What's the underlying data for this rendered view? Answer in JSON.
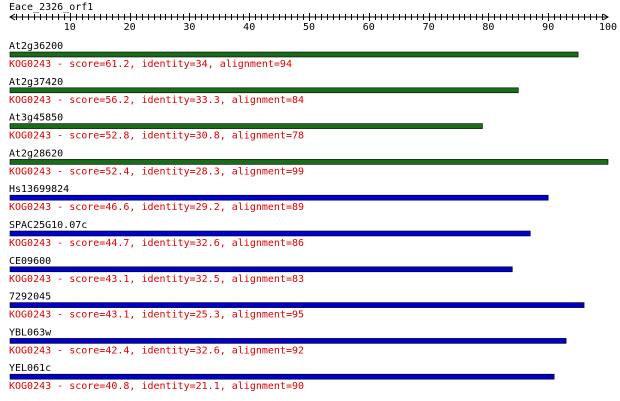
{
  "query": {
    "name": "Eace_2326_orf1",
    "length": 100
  },
  "ruler": {
    "min": 0,
    "max": 100,
    "major_step": 10,
    "minor_step": 1,
    "labels": [
      "10",
      "20",
      "30",
      "40",
      "50",
      "60",
      "70",
      "80",
      "90",
      "100"
    ]
  },
  "colors": {
    "group_green": "#1a6b1a",
    "group_blue": "#0000cc",
    "detail_text": "#e00000"
  },
  "hits": [
    {
      "name": "At2g36200",
      "color": "green",
      "end": 95,
      "detail": "KOG0243 - score=61.2, identity=34, alignment=94"
    },
    {
      "name": "At2g37420",
      "color": "green",
      "end": 85,
      "detail": "KOG0243 - score=56.2, identity=33.3, alignment=84"
    },
    {
      "name": "At3g45850",
      "color": "green",
      "end": 79,
      "detail": "KOG0243 - score=52.8, identity=30.8, alignment=78"
    },
    {
      "name": "At2g28620",
      "color": "green",
      "end": 100,
      "detail": "KOG0243 - score=52.4, identity=28.3, alignment=99"
    },
    {
      "name": "Hs13699824",
      "color": "blue",
      "end": 90,
      "detail": "KOG0243 - score=46.6, identity=29.2, alignment=89"
    },
    {
      "name": "SPAC25G10.07c",
      "color": "blue",
      "end": 87,
      "detail": "KOG0243 - score=44.7, identity=32.6, alignment=86"
    },
    {
      "name": "CE09600",
      "color": "blue",
      "end": 84,
      "detail": "KOG0243 - score=43.1, identity=32.5, alignment=83"
    },
    {
      "name": "7292045",
      "color": "blue",
      "end": 96,
      "detail": "KOG0243 - score=43.1, identity=25.3, alignment=95"
    },
    {
      "name": "YBL063w",
      "color": "blue",
      "end": 93,
      "detail": "KOG0243 - score=42.4, identity=32.6, alignment=92"
    },
    {
      "name": "YEL061c",
      "color": "blue",
      "end": 91,
      "detail": "KOG0243 - score=40.8, identity=21.1, alignment=90"
    }
  ]
}
